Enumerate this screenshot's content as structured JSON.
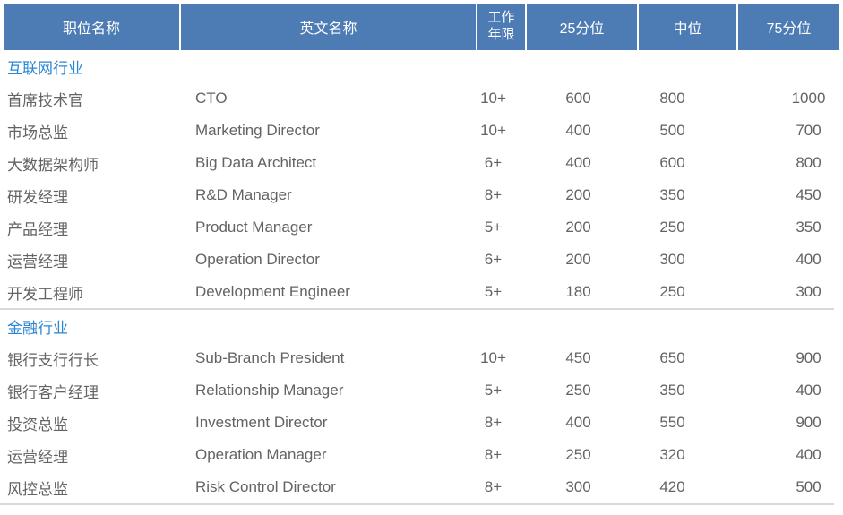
{
  "colors": {
    "header_bg": "#4d7cb5",
    "header_text": "#ffffff",
    "section_title_text": "#2a86d1",
    "body_text": "#636363",
    "divider": "#d9d9d9"
  },
  "table": {
    "header": {
      "columns": [
        {
          "id": "position",
          "label": "职位名称"
        },
        {
          "id": "english",
          "label": "英文名称"
        },
        {
          "id": "years",
          "label": "工作\n年限"
        },
        {
          "id": "p25",
          "label": "25分位"
        },
        {
          "id": "median",
          "label": "中位"
        },
        {
          "id": "p75",
          "label": "75分位"
        }
      ]
    },
    "sections": [
      {
        "title": "互联网行业",
        "rows": [
          {
            "cells": [
              "首席技术官",
              "CTO",
              "10+",
              "600",
              "800",
              "1000"
            ]
          },
          {
            "cells": [
              "市场总监",
              "Marketing Director",
              "10+",
              "400",
              "500",
              "700"
            ]
          },
          {
            "cells": [
              "大数据架构师",
              "Big Data Architect",
              "6+",
              "400",
              "600",
              "800"
            ]
          },
          {
            "cells": [
              "研发经理",
              "R&D Manager",
              "8+",
              "200",
              "350",
              "450"
            ]
          },
          {
            "cells": [
              "产品经理",
              "Product Manager",
              "5+",
              "200",
              "250",
              "350"
            ]
          },
          {
            "cells": [
              "运营经理",
              "Operation Director",
              "6+",
              "200",
              "300",
              "400"
            ]
          },
          {
            "cells": [
              "开发工程师",
              "Development Engineer",
              "5+",
              "180",
              "250",
              "300"
            ]
          }
        ]
      },
      {
        "title": "金融行业",
        "rows": [
          {
            "cells": [
              "银行支行行长",
              "Sub-Branch President",
              "10+",
              "450",
              "650",
              "900"
            ]
          },
          {
            "cells": [
              "银行客户经理",
              "Relationship Manager",
              "5+",
              "250",
              "350",
              "400"
            ]
          },
          {
            "cells": [
              "投资总监",
              "Investment Director",
              "8+",
              "400",
              "550",
              "900"
            ]
          },
          {
            "cells": [
              "运营经理",
              "Operation Manager",
              "8+",
              "250",
              "320",
              "400"
            ]
          },
          {
            "cells": [
              "风控总监",
              "Risk Control Director",
              "8+",
              "300",
              "420",
              "500"
            ]
          }
        ]
      }
    ]
  }
}
